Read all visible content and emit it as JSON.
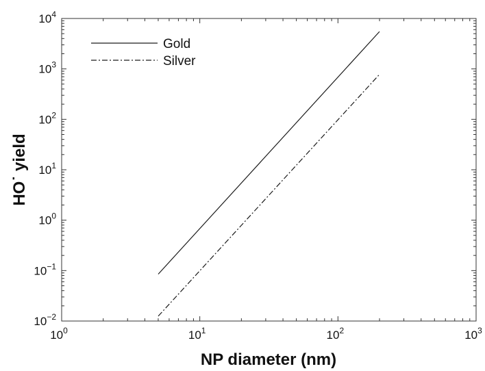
{
  "chart_data": {
    "type": "line",
    "title": "",
    "xlabel": "NP diameter (nm)",
    "ylabel": "HO˙ yield",
    "x_scale": "log",
    "y_scale": "log",
    "xlim": [
      1,
      1000
    ],
    "ylim": [
      0.01,
      10000
    ],
    "x_ticks": [
      {
        "value": 1,
        "base": "10",
        "exp": "0"
      },
      {
        "value": 10,
        "base": "10",
        "exp": "1"
      },
      {
        "value": 100,
        "base": "10",
        "exp": "2"
      },
      {
        "value": 1000,
        "base": "10",
        "exp": "3"
      }
    ],
    "y_ticks": [
      {
        "value": 0.01,
        "base": "10",
        "exp": "−2"
      },
      {
        "value": 0.1,
        "base": "10",
        "exp": "−1"
      },
      {
        "value": 1,
        "base": "10",
        "exp": "0"
      },
      {
        "value": 10,
        "base": "10",
        "exp": "1"
      },
      {
        "value": 100,
        "base": "10",
        "exp": "2"
      },
      {
        "value": 1000,
        "base": "10",
        "exp": "3"
      },
      {
        "value": 10000,
        "base": "10",
        "exp": "4"
      }
    ],
    "grid": false,
    "legend_position": "top-left",
    "series": [
      {
        "name": "Gold",
        "style": "solid",
        "color": "#1a1a1a",
        "x": [
          5,
          200
        ],
        "y": [
          0.085,
          5500
        ]
      },
      {
        "name": "Silver",
        "style": "dash-dot",
        "color": "#1a1a1a",
        "x": [
          5,
          200
        ],
        "y": [
          0.0125,
          780
        ]
      }
    ]
  }
}
